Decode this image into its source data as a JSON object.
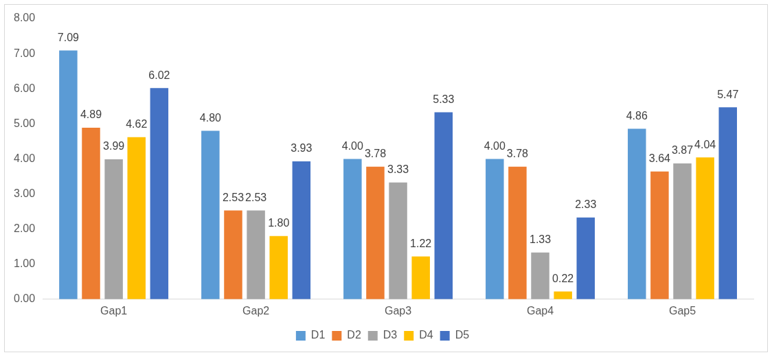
{
  "chart_data": {
    "type": "bar",
    "categories": [
      "Gap1",
      "Gap2",
      "Gap3",
      "Gap4",
      "Gap5"
    ],
    "series": [
      {
        "name": "D1",
        "color": "#5b9bd5",
        "values": [
          7.09,
          4.8,
          4.0,
          4.0,
          4.86
        ],
        "value_labels": [
          "7.09",
          "4.80",
          "4.00",
          "4.00",
          "4.86"
        ]
      },
      {
        "name": "D2",
        "color": "#ed7d31",
        "values": [
          4.89,
          2.53,
          3.78,
          3.78,
          3.64
        ],
        "value_labels": [
          "4.89",
          "2.53",
          "3.78",
          "3.78",
          "3.64"
        ]
      },
      {
        "name": "D3",
        "color": "#a5a5a5",
        "values": [
          3.99,
          2.53,
          3.33,
          1.33,
          3.87
        ],
        "value_labels": [
          "3.99",
          "2.53",
          "3.33",
          "1.33",
          "3.87"
        ]
      },
      {
        "name": "D4",
        "color": "#ffc000",
        "values": [
          4.62,
          1.8,
          1.22,
          0.22,
          4.04
        ],
        "value_labels": [
          "4.62",
          "1.80",
          "1.22",
          "0.22",
          "4.04"
        ]
      },
      {
        "name": "D5",
        "color": "#4472c4",
        "values": [
          6.02,
          3.93,
          5.33,
          2.33,
          5.47
        ],
        "value_labels": [
          "6.02",
          "3.93",
          "5.33",
          "2.33",
          "5.47"
        ]
      }
    ],
    "ylim": [
      0,
      8
    ],
    "yticks": [
      {
        "value": 0,
        "label": "0.00"
      },
      {
        "value": 1,
        "label": "1.00"
      },
      {
        "value": 2,
        "label": "2.00"
      },
      {
        "value": 3,
        "label": "3.00"
      },
      {
        "value": 4,
        "label": "4.00"
      },
      {
        "value": 5,
        "label": "5.00"
      },
      {
        "value": 6,
        "label": "6.00"
      },
      {
        "value": 7,
        "label": "7.00"
      },
      {
        "value": 8,
        "label": "8.00"
      }
    ],
    "grid": false,
    "legend": "bottom"
  }
}
